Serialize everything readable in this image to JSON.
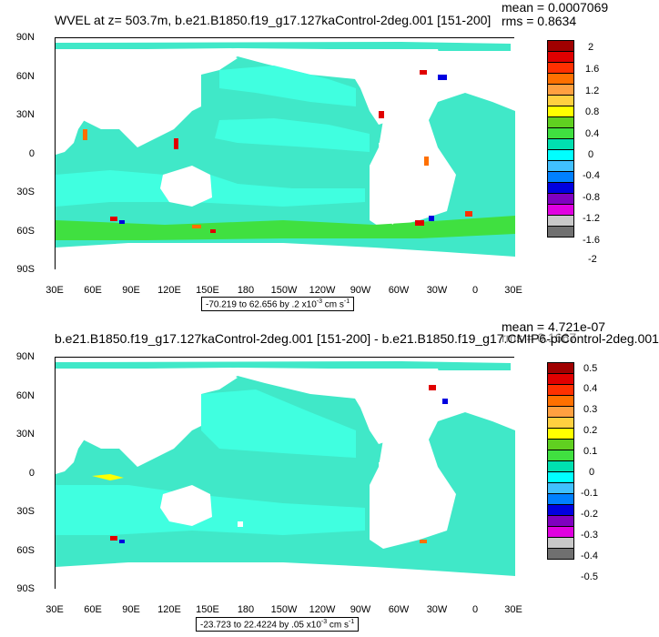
{
  "panels": [
    {
      "title": "WVEL at z= 503.7m, b.e21.B1850.f19_g17.127kaControl-2deg.001 [151-200]",
      "mean": "mean = 0.0007069",
      "rms": "rms = 0.8634",
      "range_text": "-70.219 to 62.656 by .2 x10",
      "range_exp": "-3",
      "range_unit": " cm s",
      "range_unit_exp": "-1",
      "colorbar": {
        "labels": [
          "2",
          "1.6",
          "1.2",
          "0.8",
          "0.4",
          "0",
          "-0.4",
          "-0.8",
          "-1.2",
          "-1.6",
          "-2"
        ],
        "colors": [
          "#a00000",
          "#e00000",
          "#ff3000",
          "#ff7000",
          "#ffa040",
          "#ffd040",
          "#ffff00",
          "#60d020",
          "#40e040",
          "#00e0b0",
          "#00ffff",
          "#40c0ff",
          "#0080ff",
          "#0000e0",
          "#8000c0",
          "#e000e0",
          "#c8c8c8",
          "#707070"
        ]
      }
    },
    {
      "title": "b.e21.B1850.f19_g17.127kaControl-2deg.001 [151-200] - b.e21.B1850.f19_g17.CMIP6-piControl-2deg.001",
      "mean": "mean = 4.721e-07",
      "rms": "rms = 0.1667",
      "range_text": "-23.723 to 22.4224 by .05 x10",
      "range_exp": "-3",
      "range_unit": " cm s",
      "range_unit_exp": "-1",
      "colorbar": {
        "labels": [
          "0.5",
          "0.4",
          "0.3",
          "0.2",
          "0.1",
          "0",
          "-0.1",
          "-0.2",
          "-0.3",
          "-0.4",
          "-0.5"
        ],
        "colors": [
          "#a00000",
          "#e00000",
          "#ff3000",
          "#ff7000",
          "#ffa040",
          "#ffd040",
          "#ffff00",
          "#60d020",
          "#40e040",
          "#00e0b0",
          "#00ffff",
          "#40c0ff",
          "#0080ff",
          "#0000e0",
          "#8000c0",
          "#e000e0",
          "#c8c8c8",
          "#707070"
        ]
      }
    }
  ],
  "lat_labels": [
    "90N",
    "60N",
    "30N",
    "0",
    "30S",
    "60S",
    "90S"
  ],
  "lon_labels": [
    "30E",
    "60E",
    "90E",
    "120E",
    "150E",
    "180",
    "150W",
    "120W",
    "90W",
    "60W",
    "30W",
    "0",
    "30E"
  ],
  "map_colors": {
    "ocean_base": "#40e8c8",
    "ocean_light": "#40ffe0",
    "land": "#ffffff",
    "green": "#40e040"
  }
}
